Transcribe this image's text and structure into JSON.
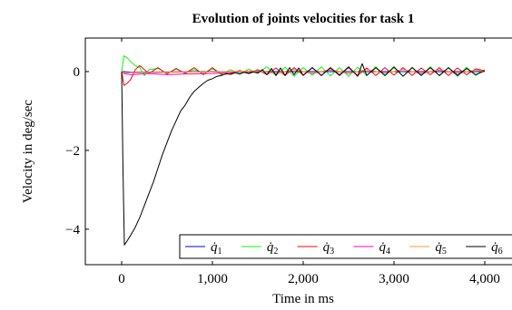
{
  "chart_data": {
    "type": "line",
    "title": "Evolution of joints velocities for task 1",
    "xlabel": "Time in ms",
    "ylabel": "Velocity in deg/sec",
    "xlim": [
      -400,
      4400
    ],
    "ylim": [
      -4.9,
      0.85
    ],
    "xticks": [
      0,
      1000,
      2000,
      3000,
      4000
    ],
    "xtick_labels": [
      "0",
      "1,000",
      "2,000",
      "3,000",
      "4,000"
    ],
    "yticks": [
      0,
      -2,
      -4
    ],
    "ytick_labels": [
      "0",
      "−2",
      "−4"
    ],
    "grid": false,
    "legend_position": "bottom-right",
    "series": [
      {
        "name": "q̇1",
        "color": "#0000ff",
        "x": [
          0,
          25,
          100,
          500,
          1000,
          1500,
          2000,
          2500,
          3000,
          3500,
          4000
        ],
        "y": [
          0,
          0,
          -0.02,
          -0.01,
          0,
          0,
          0,
          0,
          0,
          0,
          0
        ]
      },
      {
        "name": "q̇2",
        "color": "#00ff00",
        "x": [
          0,
          25,
          60,
          100,
          150,
          200,
          250,
          300,
          400,
          500,
          600,
          700,
          800,
          900,
          1000,
          1100,
          1200,
          1300,
          1400,
          1500,
          1600,
          1700,
          1800,
          1900,
          2000,
          2100,
          2200,
          2300,
          2400,
          2500,
          2600,
          2700,
          2800,
          2900,
          3000,
          3100,
          3200,
          3300,
          3400,
          3500,
          3600,
          3700,
          3800,
          3900,
          4000
        ],
        "y": [
          0,
          0.4,
          0.35,
          0.25,
          0.15,
          0.1,
          -0.1,
          0.05,
          0.08,
          -0.05,
          0.06,
          -0.04,
          0.05,
          -0.03,
          0.07,
          -0.06,
          0.05,
          -0.05,
          0.06,
          -0.04,
          0.12,
          -0.1,
          0.11,
          -0.12,
          0.1,
          -0.09,
          0.12,
          -0.11,
          0.1,
          -0.12,
          0.11,
          -0.1,
          0.12,
          -0.11,
          0.1,
          -0.12,
          0.11,
          -0.1,
          0.12,
          -0.11,
          0.1,
          -0.12,
          0.11,
          -0.1,
          0.05
        ]
      },
      {
        "name": "q̇3",
        "color": "#ff0000",
        "x": [
          0,
          25,
          60,
          100,
          150,
          200,
          300,
          400,
          500,
          600,
          700,
          800,
          900,
          1000,
          1100,
          1200,
          1300,
          1400,
          1500,
          1600,
          1700,
          1800,
          1900,
          2000,
          2100,
          2200,
          2300,
          2400,
          2500,
          2600,
          2700,
          2800,
          2900,
          3000,
          3100,
          3200,
          3300,
          3400,
          3500,
          3600,
          3700,
          3800,
          3900,
          4000
        ],
        "y": [
          0,
          -0.35,
          -0.3,
          -0.2,
          0.05,
          0.15,
          -0.05,
          0.1,
          -0.06,
          0.08,
          -0.05,
          0.1,
          -0.08,
          0.1,
          -0.08,
          -0.05,
          0.03,
          -0.04,
          0.05,
          -0.08,
          0.09,
          -0.1,
          0.1,
          -0.09,
          0.1,
          -0.1,
          0.09,
          -0.08,
          0.1,
          -0.1,
          0.09,
          -0.1,
          0.1,
          -0.09,
          0.1,
          -0.1,
          0.09,
          -0.08,
          0.1,
          -0.1,
          0.09,
          -0.08,
          0.07,
          0.02
        ]
      },
      {
        "name": "q̇4",
        "color": "#ff00bf",
        "x": [
          0,
          25,
          100,
          300,
          500,
          700,
          1000,
          1100,
          1500,
          1700,
          1900,
          2100,
          2300,
          2500,
          2700,
          2900,
          3100,
          3300,
          3500,
          3700,
          3900,
          4000
        ],
        "y": [
          0,
          -0.05,
          -0.08,
          -0.05,
          -0.08,
          -0.06,
          -0.05,
          -0.03,
          0.02,
          -0.05,
          0.05,
          -0.05,
          0.04,
          -0.05,
          0.05,
          -0.04,
          0.05,
          -0.05,
          0.04,
          -0.05,
          0.04,
          0
        ]
      },
      {
        "name": "q̇5",
        "color": "#ff9933",
        "x": [
          0,
          25,
          100,
          500,
          1000,
          1500,
          1700,
          1900,
          2100,
          2300,
          2500,
          2700,
          2900,
          3100,
          3300,
          3500,
          3700,
          3900,
          4000
        ],
        "y": [
          0,
          -0.03,
          -0.03,
          -0.02,
          -0.01,
          0.02,
          -0.04,
          0.05,
          -0.04,
          0.05,
          -0.04,
          0.05,
          -0.04,
          0.05,
          -0.04,
          0.05,
          -0.04,
          0.04,
          0
        ]
      },
      {
        "name": "q̇6",
        "color": "#000000",
        "x": [
          0,
          15,
          30,
          60,
          100,
          150,
          200,
          250,
          300,
          350,
          400,
          450,
          500,
          550,
          600,
          650,
          700,
          750,
          800,
          850,
          900,
          950,
          1000,
          1050,
          1100,
          1150,
          1200,
          1250,
          1300,
          1350,
          1400,
          1450,
          1500,
          1550,
          1600,
          1650,
          1700,
          1750,
          1800,
          1850,
          1900,
          1950,
          2000,
          2100,
          2200,
          2300,
          2400,
          2500,
          2600,
          2650,
          2700,
          2800,
          2900,
          3000,
          3100,
          3200,
          3300,
          3400,
          3500,
          3600,
          3700,
          3800,
          3900,
          4000
        ],
        "y": [
          0,
          -2.5,
          -4.4,
          -4.3,
          -4.15,
          -3.95,
          -3.7,
          -3.4,
          -3.1,
          -2.8,
          -2.45,
          -2.1,
          -1.8,
          -1.5,
          -1.25,
          -1.0,
          -0.85,
          -0.65,
          -0.5,
          -0.4,
          -0.3,
          -0.22,
          -0.18,
          -0.12,
          -0.1,
          -0.05,
          -0.07,
          -0.03,
          -0.06,
          -0.02,
          -0.05,
          -0.01,
          -0.04,
          0.05,
          -0.08,
          0.08,
          -0.1,
          0.09,
          -0.1,
          0.1,
          -0.08,
          0.09,
          -0.1,
          0.1,
          -0.1,
          0.1,
          -0.1,
          0.12,
          -0.12,
          0.2,
          -0.1,
          0.1,
          -0.1,
          0.12,
          -0.12,
          0.1,
          -0.1,
          0.1,
          -0.1,
          0.1,
          -0.1,
          0.08,
          -0.08,
          0.02
        ]
      }
    ]
  }
}
